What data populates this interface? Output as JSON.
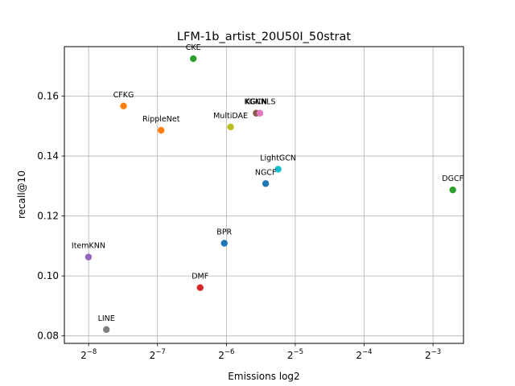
{
  "chart_data": {
    "type": "scatter",
    "title": "LFM-1b_artist_20U50I_50strat",
    "xlabel": "Emissions log2",
    "ylabel": "recall@10",
    "x_scale": "log2",
    "xlim": [
      0.00306,
      0.1699
    ],
    "ylim": [
      0.0775,
      0.1765
    ],
    "grid": true,
    "x_ticks": [
      {
        "value": 0.00390625,
        "base": "2",
        "exp": "−8"
      },
      {
        "value": 0.0078125,
        "base": "2",
        "exp": "−7"
      },
      {
        "value": 0.015625,
        "base": "2",
        "exp": "−6"
      },
      {
        "value": 0.03125,
        "base": "2",
        "exp": "−5"
      },
      {
        "value": 0.0625,
        "base": "2",
        "exp": "−4"
      },
      {
        "value": 0.125,
        "base": "2",
        "exp": "−3"
      }
    ],
    "y_ticks": [
      "0.08",
      "0.10",
      "0.12",
      "0.14",
      "0.16"
    ],
    "points": [
      {
        "label": "CKE",
        "x": 0.0112,
        "y": 0.1725,
        "color": "#2ca02c"
      },
      {
        "label": "CFKG",
        "x": 0.00555,
        "y": 0.1567,
        "color": "#ff7f0e"
      },
      {
        "label": "RippleNet",
        "x": 0.0081,
        "y": 0.1486,
        "color": "#ff7f0e"
      },
      {
        "label": "MultiDAE",
        "x": 0.0163,
        "y": 0.1497,
        "color": "#bcbd22"
      },
      {
        "label": "KGCN",
        "x": 0.0211,
        "y": 0.1543,
        "color": "#8c564b"
      },
      {
        "label": "KGNNLS",
        "x": 0.0219,
        "y": 0.1543,
        "color": "#e377c2"
      },
      {
        "label": "LightGCN",
        "x": 0.0263,
        "y": 0.1356,
        "color": "#17becf"
      },
      {
        "label": "NGCF",
        "x": 0.0232,
        "y": 0.1308,
        "color": "#1f77b4"
      },
      {
        "label": "DGCF",
        "x": 0.1525,
        "y": 0.1287,
        "color": "#2ca02c"
      },
      {
        "label": "BPR",
        "x": 0.0153,
        "y": 0.1109,
        "color": "#1f77b4"
      },
      {
        "label": "ItemKNN",
        "x": 0.0039,
        "y": 0.1063,
        "color": "#9467bd"
      },
      {
        "label": "DMF",
        "x": 0.012,
        "y": 0.0961,
        "color": "#d62728"
      },
      {
        "label": "LINE",
        "x": 0.00467,
        "y": 0.0821,
        "color": "#7f7f7f"
      }
    ]
  }
}
